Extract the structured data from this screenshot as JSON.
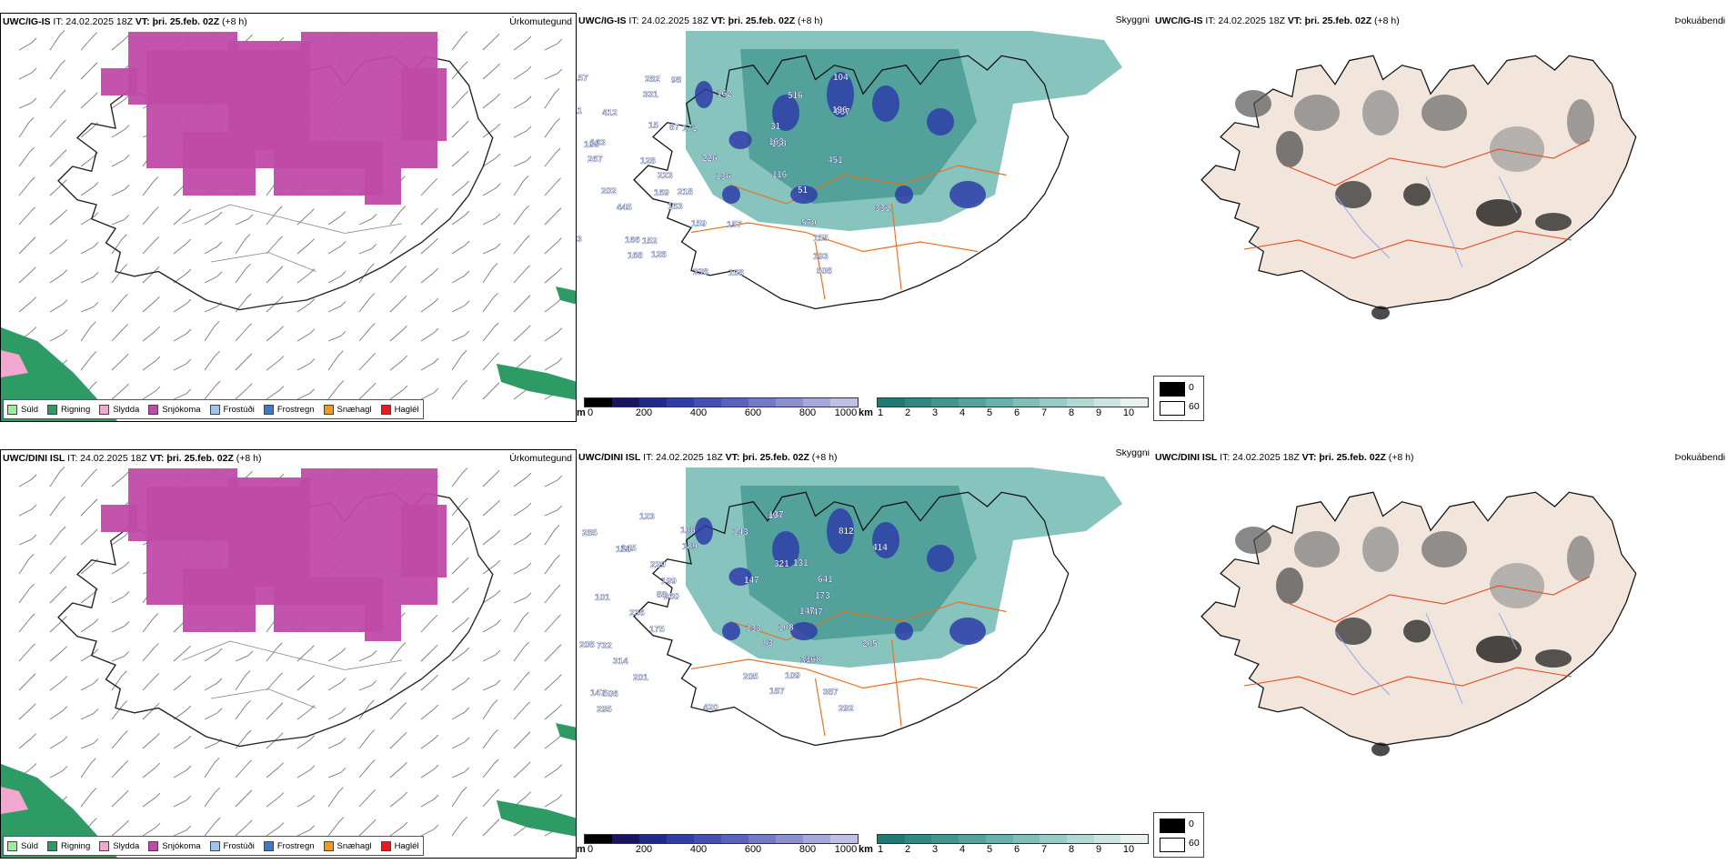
{
  "rows": [
    {
      "model": "UWC/IG-IS",
      "it": "IT: 24.02.2025 18Z",
      "vt": "VT: þri. 25.feb. 02Z",
      "lead": "(+8 h)",
      "peaks": [
        [
          "165",
          625
        ],
        [
          "412",
          645
        ],
        [
          "128",
          690
        ],
        [
          "150",
          595
        ],
        [
          "37",
          605
        ],
        [
          "125",
          598
        ],
        [
          "106",
          640
        ],
        [
          "169",
          720
        ],
        [
          "152",
          710
        ],
        [
          "98",
          745
        ],
        [
          "171",
          760
        ],
        [
          "136",
          800
        ],
        [
          "157",
          815
        ],
        [
          "168",
          820
        ],
        [
          "967",
          900
        ],
        [
          "451",
          895
        ],
        [
          "331",
          950
        ],
        [
          "193",
          885
        ],
        [
          "516",
          860
        ],
        [
          "158",
          845
        ],
        [
          "218",
          745
        ],
        [
          "166",
          690
        ],
        [
          "282",
          715
        ],
        [
          "87",
          745
        ],
        [
          "223",
          735
        ],
        [
          "159",
          775
        ],
        [
          "298",
          780
        ],
        [
          "211",
          605
        ],
        [
          "267",
          630
        ],
        [
          "445",
          665
        ],
        [
          "168",
          680
        ],
        [
          "331",
          700
        ],
        [
          "163",
          645
        ],
        [
          "202",
          660
        ],
        [
          "153",
          625
        ],
        [
          "157",
          635
        ],
        [
          "31",
          855
        ],
        [
          "116",
          860
        ],
        [
          "570",
          895
        ],
        [
          "508",
          915
        ],
        [
          "196",
          935
        ],
        [
          "226",
          755
        ],
        [
          "163",
          720
        ],
        [
          "128",
          705
        ],
        [
          "162",
          780
        ],
        [
          "163",
          840
        ],
        [
          "51",
          875
        ],
        [
          "155",
          895
        ],
        [
          "104",
          920
        ],
        [
          "15",
          720
        ]
      ]
    },
    {
      "model": "UWC/DINI ISL",
      "it": "IT: 24.02.2025 18Z",
      "vt": "VT: þri. 25.feb. 02Z",
      "lead": "(+8 h)",
      "peaks": [
        [
          "124",
          630
        ],
        [
          "158",
          660
        ],
        [
          "101",
          640
        ],
        [
          "732",
          645
        ],
        [
          "506",
          655
        ],
        [
          "285",
          635
        ],
        [
          "199",
          725
        ],
        [
          "175",
          715
        ],
        [
          "201",
          700
        ],
        [
          "123",
          710
        ],
        [
          "229",
          725
        ],
        [
          "236",
          705
        ],
        [
          "314",
          690
        ],
        [
          "295",
          675
        ],
        [
          "145",
          665
        ],
        [
          "260",
          715
        ],
        [
          "208",
          625
        ],
        [
          "147",
          640
        ],
        [
          "143",
          800
        ],
        [
          "147",
          815
        ],
        [
          "133",
          820
        ],
        [
          "205",
          820
        ],
        [
          "194",
          850
        ],
        [
          "321",
          860
        ],
        [
          "447",
          900
        ],
        [
          "348",
          895
        ],
        [
          "292",
          940
        ],
        [
          "414",
          940
        ],
        [
          "173",
          880
        ],
        [
          "205",
          935
        ],
        [
          "387",
          895
        ],
        [
          "812",
          915
        ],
        [
          "641",
          895
        ],
        [
          "108",
          855
        ],
        [
          "109",
          865
        ],
        [
          "137",
          850
        ],
        [
          "131",
          880
        ],
        [
          "147",
          890
        ],
        [
          "168",
          900
        ],
        [
          "420",
          790
        ],
        [
          "189",
          770
        ],
        [
          "88",
          705
        ],
        [
          "83",
          825
        ],
        [
          "187",
          835
        ],
        [
          "108",
          740
        ]
      ]
    }
  ],
  "precip_panel": {
    "label": "Úrkomutegund",
    "legend": [
      {
        "label": "Súld",
        "color": "#99ee99"
      },
      {
        "label": "Rigning",
        "color": "#2e9b65"
      },
      {
        "label": "Slydda",
        "color": "#f2a7d2"
      },
      {
        "label": "Snjókoma",
        "color": "#c04aa8"
      },
      {
        "label": "Frostúði",
        "color": "#9ec4f0"
      },
      {
        "label": "Frostregn",
        "color": "#3c7bc6"
      },
      {
        "label": "Snæhagl",
        "color": "#f29a1e"
      },
      {
        "label": "Haglél",
        "color": "#e02020"
      }
    ]
  },
  "ceiling_panel": {
    "label": "Skyggni",
    "terrain_unit": "m",
    "terrain_ticks": [
      "0",
      "200",
      "400",
      "600",
      "800",
      "1000"
    ],
    "vis_unit": "km",
    "vis_ticks": [
      "1",
      "2",
      "3",
      "4",
      "5",
      "6",
      "7",
      "8",
      "9",
      "10"
    ],
    "terrain_colors": [
      "#000000",
      "#151560",
      "#1e2a8c",
      "#2e3da8",
      "#4250b4",
      "#5a62bf",
      "#7379c8",
      "#8c90d1",
      "#a4a8da",
      "#bcc0e4"
    ],
    "vis_colors": [
      "#1e7a74",
      "#2e8a83",
      "#3f9790",
      "#52a39d",
      "#68b0aa",
      "#80beb8",
      "#98cbc6",
      "#b2d8d4",
      "#cce5e2",
      "#e6f2f0"
    ]
  },
  "fog_panel": {
    "label": "Þokuábendi",
    "legend": [
      "0",
      "60"
    ]
  },
  "colors": {
    "snow": "#c04aa8",
    "rain": "#2e9b65",
    "roads": "#e8701e",
    "land": "#f2e6dc",
    "rivers": "#8fa8e8"
  }
}
